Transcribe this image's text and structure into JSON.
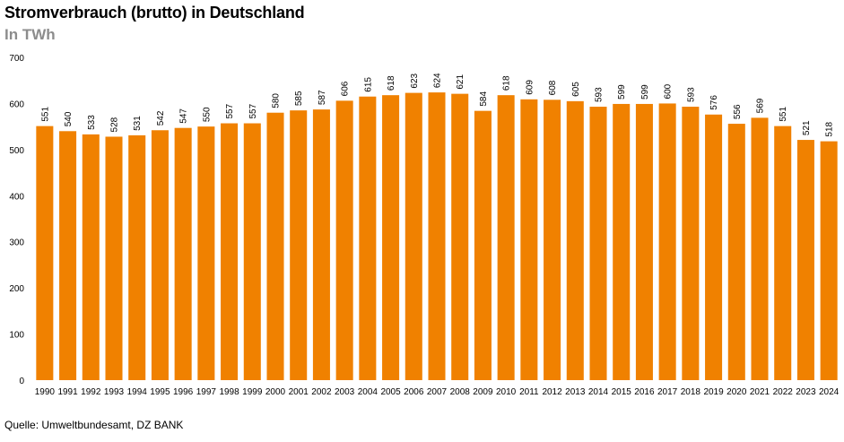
{
  "header": {
    "title": "Stromverbrauch (brutto) in Deutschland",
    "subtitle": "In TWh"
  },
  "footer": {
    "source": "Quelle: Umweltbundesamt, DZ BANK"
  },
  "colors": {
    "bar": "#f08100",
    "subtitle": "#8c8c8c",
    "text": "#000000"
  },
  "chart_data": {
    "type": "bar",
    "title": "Stromverbrauch (brutto) in Deutschland",
    "subtitle": "In TWh",
    "xlabel": "",
    "ylabel": "",
    "ylim": [
      0,
      700
    ],
    "yticks": [
      0,
      100,
      200,
      300,
      400,
      500,
      600,
      700
    ],
    "grid": false,
    "legend": "none",
    "categories": [
      "1990",
      "1991",
      "1992",
      "1993",
      "1994",
      "1995",
      "1996",
      "1997",
      "1998",
      "1999",
      "2000",
      "2001",
      "2002",
      "2003",
      "2004",
      "2005",
      "2006",
      "2007",
      "2008",
      "2009",
      "2010",
      "2011",
      "2012",
      "2013",
      "2014",
      "2015",
      "2016",
      "2017",
      "2018",
      "2019",
      "2020",
      "2021",
      "2022",
      "2023",
      "2024"
    ],
    "values": [
      551,
      540,
      533,
      528,
      531,
      542,
      547,
      550,
      557,
      557,
      580,
      585,
      587,
      606,
      615,
      618,
      623,
      624,
      621,
      584,
      618,
      609,
      608,
      605,
      593,
      599,
      599,
      600,
      593,
      576,
      556,
      569,
      551,
      521,
      518
    ]
  }
}
